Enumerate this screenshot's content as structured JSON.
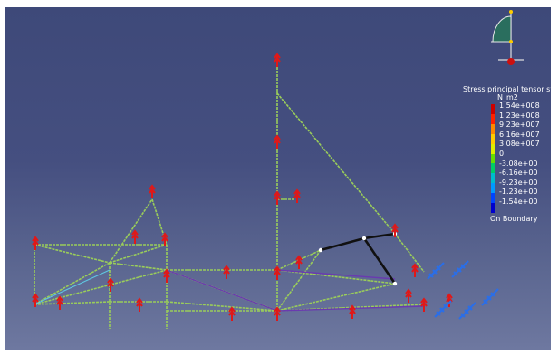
{
  "legend": {
    "title": "Stress principal tensor sym",
    "unit": "N_m2",
    "values": [
      "1.54e+008",
      "1.23e+008",
      "9.23e+007",
      "6.16e+007",
      "3.08e+007",
      "0",
      "-3.08e+00",
      "-6.16e+00",
      "-9.23e+00",
      "-1.23e+00",
      "-1.54e+00"
    ],
    "colors": [
      "#cc0000",
      "#ff2200",
      "#ff8800",
      "#ffcc00",
      "#ddee00",
      "#66dd00",
      "#00cc66",
      "#00bbcc",
      "#0099ff",
      "#0044ff",
      "#0000cc"
    ],
    "footer": "On Boundary"
  },
  "colors": {
    "background_top": "#3e4979",
    "background_bottom": "#6e78a0",
    "frame_member": "#9acd5a",
    "highlight_member": "#111111",
    "tension_member": "#6a3ab0",
    "constraint": "#2a6ee8",
    "load_arrow": "#e01818"
  },
  "icons": {
    "compass": "compass-icon",
    "load": "load-arrow-icon",
    "clamp": "clamp-restraint-icon"
  }
}
